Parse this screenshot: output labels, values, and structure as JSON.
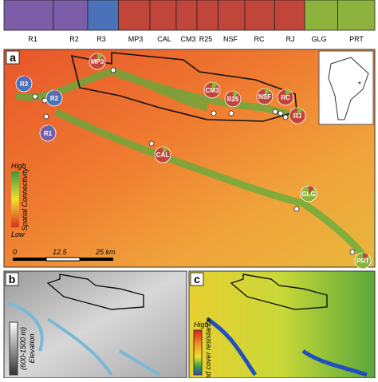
{
  "structure": {
    "populations": [
      "R1",
      "R2",
      "R3",
      "MP3",
      "CAL",
      "CM3",
      "R25",
      "NSF",
      "RC",
      "RJ",
      "GLG",
      "PRT"
    ]
  },
  "panel_a": {
    "letter": "a",
    "sites": [
      "MP3",
      "R3",
      "R2",
      "R1",
      "CM3",
      "R25",
      "NSF",
      "RC",
      "RJ",
      "CAL",
      "GLG",
      "PRT"
    ],
    "legend": {
      "high": "High",
      "title": "Spatial Connectivity",
      "low": "Low"
    },
    "scale": [
      "0",
      "12.5",
      "25 km"
    ]
  },
  "panel_b": {
    "letter": "b",
    "legend": {
      "range": "(600-1500 m)",
      "title": "Elevation"
    }
  },
  "panel_c": {
    "letter": "c",
    "legend": {
      "high": "High",
      "title": "Land cover resistance"
    }
  }
}
